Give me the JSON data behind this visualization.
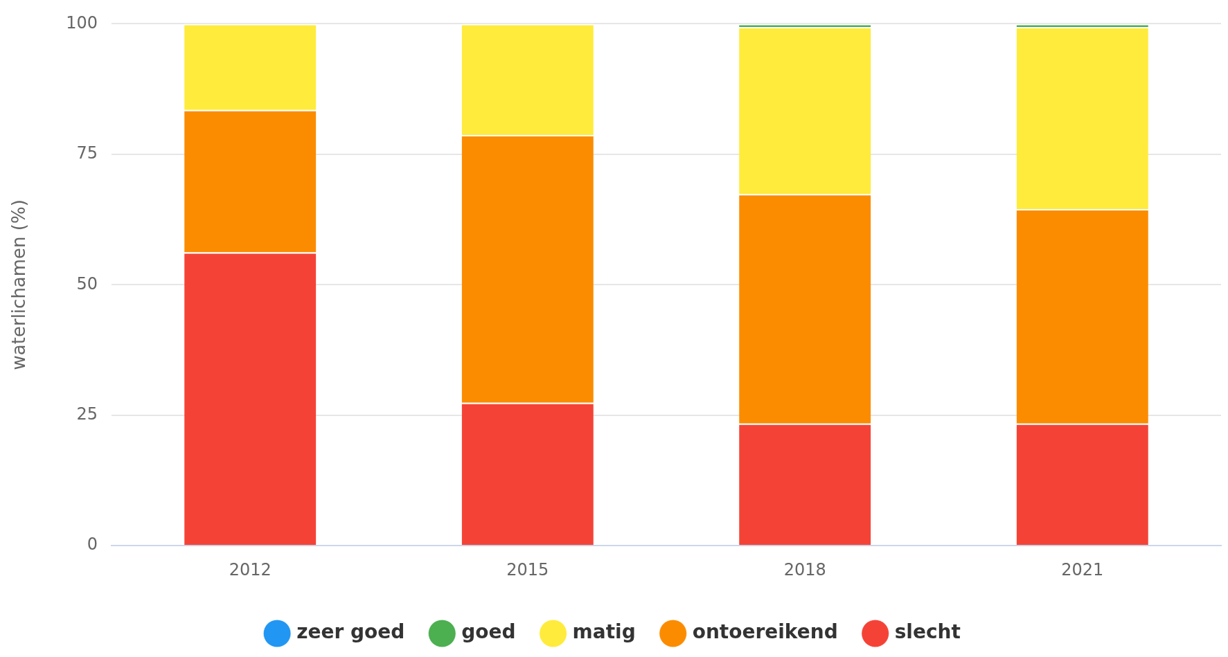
{
  "chart_data": {
    "type": "bar",
    "ylabel": "waterlichamen (%)",
    "categories": [
      "2012",
      "2015",
      "2018",
      "2021"
    ],
    "stacked": true,
    "series": [
      {
        "name": "slecht",
        "color": "#f44336",
        "values": [
          56.2,
          27.4,
          23.4,
          23.4
        ]
      },
      {
        "name": "ontoereikend",
        "color": "#fb8c00",
        "values": [
          27.3,
          51.3,
          44,
          41.1
        ]
      },
      {
        "name": "matig",
        "color": "#ffeb3b",
        "values": [
          16.5,
          21.3,
          32,
          34.9
        ]
      },
      {
        "name": "goed",
        "color": "#4caf50",
        "values": [
          0,
          0,
          0.6,
          0.6
        ]
      },
      {
        "name": "zeer goed",
        "color": "#2196f3",
        "values": [
          0,
          0,
          0,
          0
        ]
      }
    ],
    "ylim": [
      0,
      100
    ],
    "yticks": [
      0,
      25,
      50,
      75,
      100
    ],
    "grid": "y",
    "legend": "bottom"
  }
}
